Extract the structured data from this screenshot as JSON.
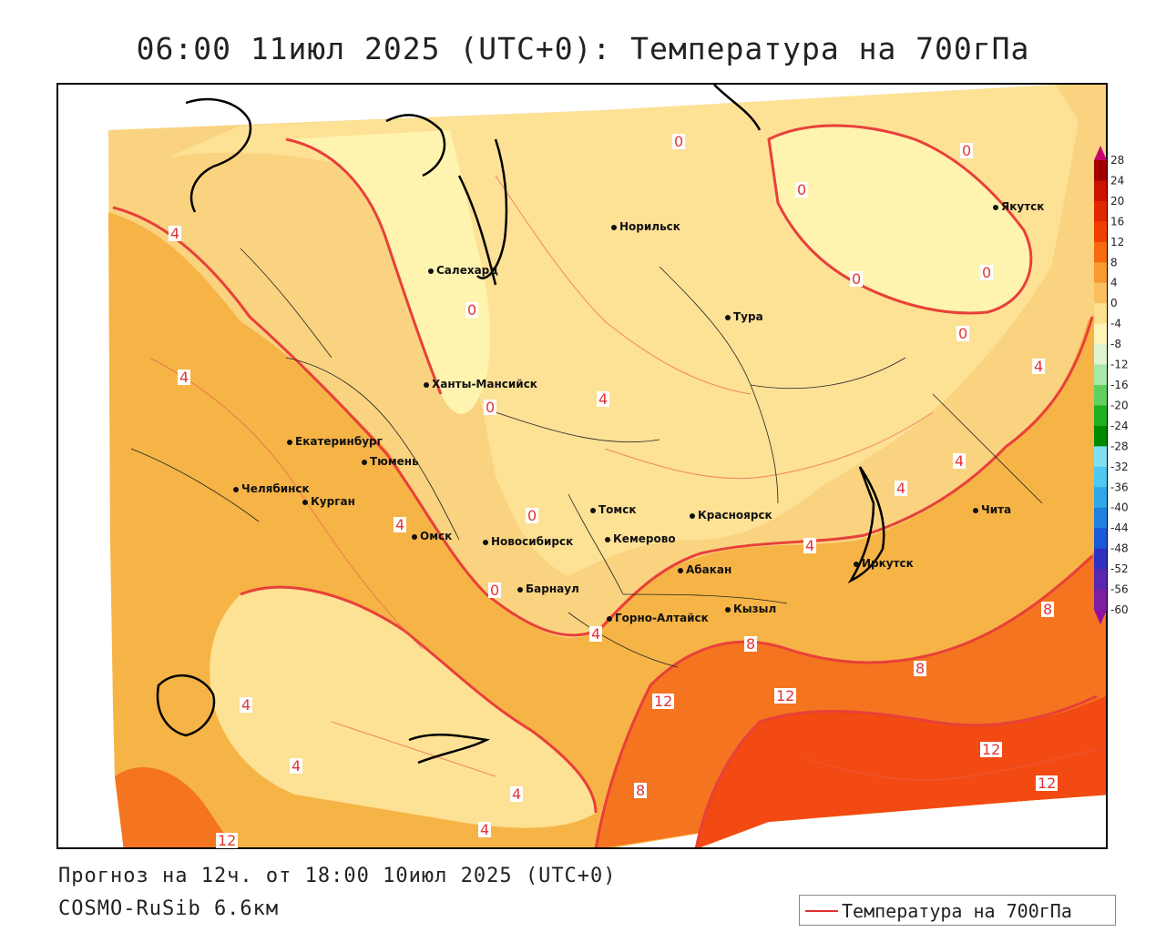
{
  "title": "06:00 11июл 2025 (UTC+0): Температура на 700гПа",
  "footer": {
    "forecast": "Прогноз на 12ч. от 18:00 10июл 2025 (UTC+0)",
    "model": "COSMO-RuSib 6.6км"
  },
  "legend": {
    "label": "Температура на 700гПа",
    "line_color": "#e0302e"
  },
  "colorbar": {
    "ticks": [
      "28",
      "24",
      "20",
      "16",
      "12",
      "8",
      "4",
      "0",
      "-4",
      "-8",
      "-12",
      "-16",
      "-20",
      "-24",
      "-28",
      "-32",
      "-36",
      "-40",
      "-44",
      "-48",
      "-52",
      "-56",
      "-60"
    ],
    "colors": [
      "#c8006e",
      "#a00000",
      "#c81400",
      "#e02800",
      "#f04000",
      "#f86a10",
      "#f89a30",
      "#fac060",
      "#fde090",
      "#fff4b8",
      "#e0f4d0",
      "#a8e8a8",
      "#60d060",
      "#20b020",
      "#008a00",
      "#80e0f0",
      "#50c8f0",
      "#30a8e8",
      "#2080e0",
      "#1a5ad8",
      "#3030c0",
      "#5a28b0",
      "#7a20a0",
      "#9010a0"
    ]
  },
  "cities": [
    {
      "name": "Якутск"
    },
    {
      "name": "Норильск"
    },
    {
      "name": "Салехард"
    },
    {
      "name": "Тура"
    },
    {
      "name": "Ханты-Мансийск"
    },
    {
      "name": "Екатеринбург"
    },
    {
      "name": "Тюмень"
    },
    {
      "name": "Челябинск"
    },
    {
      "name": "Курган"
    },
    {
      "name": "Омск"
    },
    {
      "name": "Новосибирск"
    },
    {
      "name": "Томск"
    },
    {
      "name": "Кемерово"
    },
    {
      "name": "Красноярск"
    },
    {
      "name": "Абакан"
    },
    {
      "name": "Барнаул"
    },
    {
      "name": "Горно-Алтайск"
    },
    {
      "name": "Кызыл"
    },
    {
      "name": "Иркутск"
    },
    {
      "name": "Чита"
    }
  ],
  "contour_labels": [
    "0",
    "0",
    "0",
    "0",
    "0",
    "0",
    "0",
    "0",
    "0",
    "0",
    "4",
    "4",
    "4",
    "4",
    "4",
    "4",
    "4",
    "4",
    "4",
    "4",
    "4",
    "4",
    "4",
    "8",
    "8",
    "8",
    "8",
    "12",
    "12",
    "12",
    "12",
    "12"
  ]
}
